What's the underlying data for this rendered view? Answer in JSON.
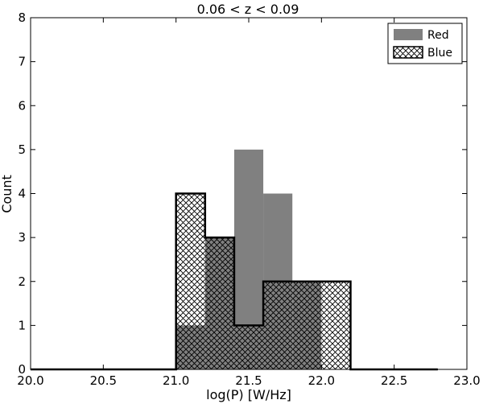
{
  "chart_data": {
    "type": "bar",
    "title": "0.06  < z  < 0.09",
    "xlabel": "log(P) [W/Hz]",
    "ylabel": "Count",
    "xlim": [
      20.0,
      23.0
    ],
    "ylim": [
      0,
      8
    ],
    "xticks": [
      "20.0",
      "20.5",
      "21.0",
      "21.5",
      "22.0",
      "22.5",
      "23.0"
    ],
    "yticks": [
      "0",
      "1",
      "2",
      "3",
      "4",
      "5",
      "6",
      "7",
      "8"
    ],
    "grid": false,
    "legend_position": "top-right",
    "bin_edges": [
      20.0,
      20.2,
      20.4,
      20.6,
      20.8,
      21.0,
      21.2,
      21.4,
      21.6,
      21.8,
      22.0,
      22.2,
      22.4,
      22.6,
      22.8
    ],
    "series": [
      {
        "name": "Red",
        "style": "filled",
        "color": "#808080",
        "values": [
          0,
          0,
          0,
          0,
          0,
          1,
          3,
          5,
          4,
          2,
          0,
          0,
          0,
          0
        ]
      },
      {
        "name": "Blue",
        "style": "hatched",
        "color": "#000000",
        "values": [
          0,
          0,
          0,
          0,
          0,
          4,
          3,
          1,
          2,
          2,
          2,
          0,
          0,
          0
        ]
      }
    ]
  }
}
